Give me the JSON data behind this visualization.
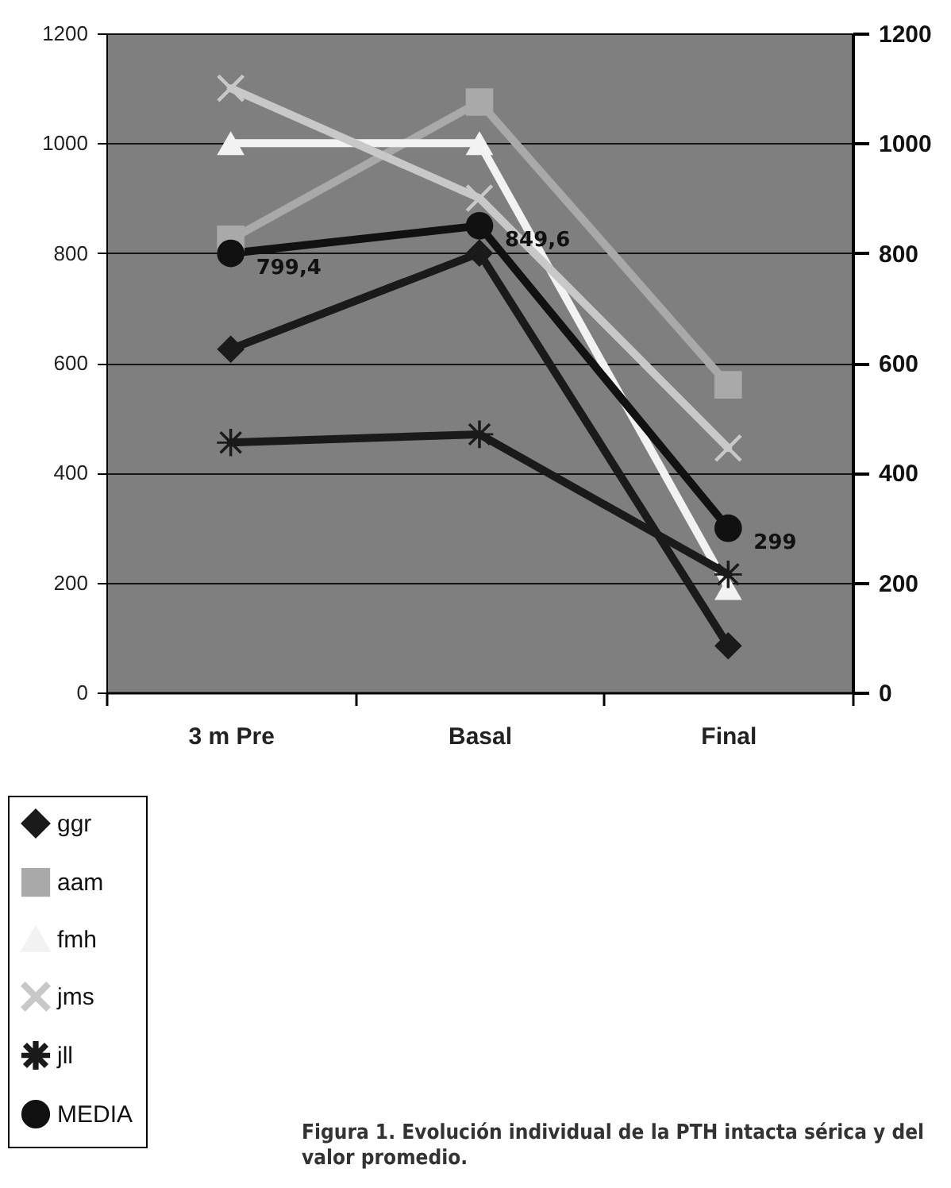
{
  "chart_data": {
    "type": "line",
    "categories": [
      "3 m Pre",
      "Basal",
      "Final"
    ],
    "series": [
      {
        "name": "ggr",
        "color": "#1a1a1a",
        "marker": "diamond",
        "values": [
          625,
          800,
          85
        ]
      },
      {
        "name": "aam",
        "color": "#a9a9a9",
        "marker": "square",
        "values": [
          825,
          1075,
          560
        ]
      },
      {
        "name": "fmh",
        "color": "#f2f2f2",
        "marker": "triangle",
        "values": [
          1000,
          1000,
          190
        ]
      },
      {
        "name": "jms",
        "color": "#c8c8c8",
        "marker": "cross",
        "values": [
          1100,
          900,
          445
        ]
      },
      {
        "name": "jll",
        "color": "#1a1a1a",
        "marker": "star",
        "values": [
          455,
          470,
          215
        ]
      },
      {
        "name": "MEDIA",
        "color": "#111111",
        "marker": "circle",
        "values": [
          799.4,
          849.6,
          299
        ],
        "value_labels": [
          "799,4",
          "849,6",
          "299"
        ]
      }
    ],
    "ylim": [
      0,
      1200
    ],
    "yticks": [
      0,
      200,
      400,
      600,
      800,
      1000,
      1200
    ],
    "y2lim": [
      0,
      1200
    ],
    "y2ticks": [
      0,
      200,
      400,
      600,
      800,
      1000,
      1200
    ],
    "grid": "y",
    "legend": "bottom left",
    "annotations": [
      "Figura 1. Evolución individual de la PTH intacta sérica y del valor promedio."
    ]
  }
}
